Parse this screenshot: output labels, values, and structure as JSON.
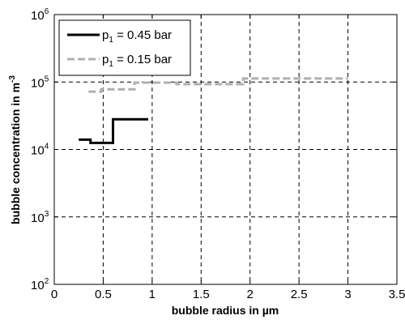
{
  "chart_data": {
    "type": "line",
    "title": "",
    "xlabel": "bubble radius in µm",
    "ylabel_text": "bubble concentration in m",
    "ylabel_exponent": "-3",
    "xlim": [
      0,
      3.5
    ],
    "ylim": [
      100,
      1000000
    ],
    "yscale": "log",
    "grid": true,
    "legend_position": "top-left",
    "x_ticks": [
      {
        "value": 0,
        "label": "0"
      },
      {
        "value": 0.5,
        "label": "0.5"
      },
      {
        "value": 1,
        "label": "1"
      },
      {
        "value": 1.5,
        "label": "1.5"
      },
      {
        "value": 2,
        "label": "2"
      },
      {
        "value": 2.5,
        "label": "2.5"
      },
      {
        "value": 3,
        "label": "3"
      },
      {
        "value": 3.5,
        "label": "3.5"
      }
    ],
    "y_ticks": [
      {
        "value": 100,
        "base": "10",
        "exponent": "2"
      },
      {
        "value": 1000,
        "base": "10",
        "exponent": "3"
      },
      {
        "value": 10000,
        "base": "10",
        "exponent": "4"
      },
      {
        "value": 100000,
        "base": "10",
        "exponent": "5"
      },
      {
        "value": 1000000,
        "base": "10",
        "exponent": "6"
      }
    ],
    "series": [
      {
        "name_main": "p",
        "name_sub": "1",
        "name_rest": " = 0.45 bar",
        "color": "#000000",
        "style": "solid",
        "points": [
          [
            0.25,
            14000
          ],
          [
            0.37,
            14000
          ],
          [
            0.37,
            12500
          ],
          [
            0.6,
            12500
          ],
          [
            0.6,
            28000
          ],
          [
            0.96,
            28000
          ]
        ]
      },
      {
        "name_main": "p",
        "name_sub": "1",
        "name_rest": " = 0.15 bar",
        "color": "#b0b0b0",
        "style": "dashed",
        "points": [
          [
            0.35,
            72000
          ],
          [
            0.48,
            72000
          ],
          [
            0.48,
            78000
          ],
          [
            0.82,
            78000
          ],
          [
            0.82,
            98000
          ],
          [
            1.25,
            98000
          ],
          [
            1.25,
            93000
          ],
          [
            1.93,
            93000
          ],
          [
            1.93,
            113000
          ],
          [
            3.0,
            113000
          ]
        ]
      }
    ]
  }
}
